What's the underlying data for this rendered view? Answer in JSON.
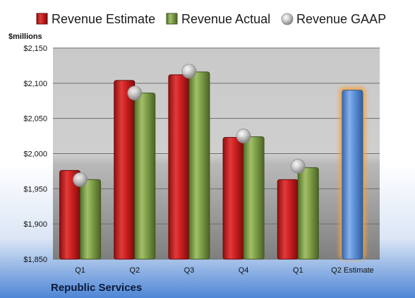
{
  "chart_data": {
    "type": "bar",
    "unit_label": "$millions",
    "company": "Republic Services",
    "categories": [
      "Q1",
      "Q2",
      "Q3",
      "Q4",
      "Q1",
      "Q2 Estimate"
    ],
    "series": [
      {
        "name": "Revenue Estimate",
        "color": "#cc1f1f",
        "values": [
          1976,
          2104,
          2112,
          2023,
          1963,
          null
        ]
      },
      {
        "name": "Revenue Actual",
        "color": "#7f9e48",
        "values": [
          1963,
          2086,
          2116,
          2024,
          1980,
          null
        ]
      },
      {
        "name": "Revenue GAAP",
        "color": "#b0b0b0",
        "type": "marker",
        "values": [
          1963,
          2086,
          2117,
          2025,
          1982,
          null
        ]
      }
    ],
    "estimate_bar": {
      "category": "Q2 Estimate",
      "value": 2090,
      "color": "#5b8fd6",
      "glow": "#f5a23a"
    },
    "y_ticks": [
      "$1,850",
      "$1,900",
      "$1,950",
      "$2,000",
      "$2,050",
      "$2,100",
      "$2,150"
    ],
    "ylim": [
      1850,
      2150
    ],
    "grid": true,
    "legend_position": "top"
  }
}
